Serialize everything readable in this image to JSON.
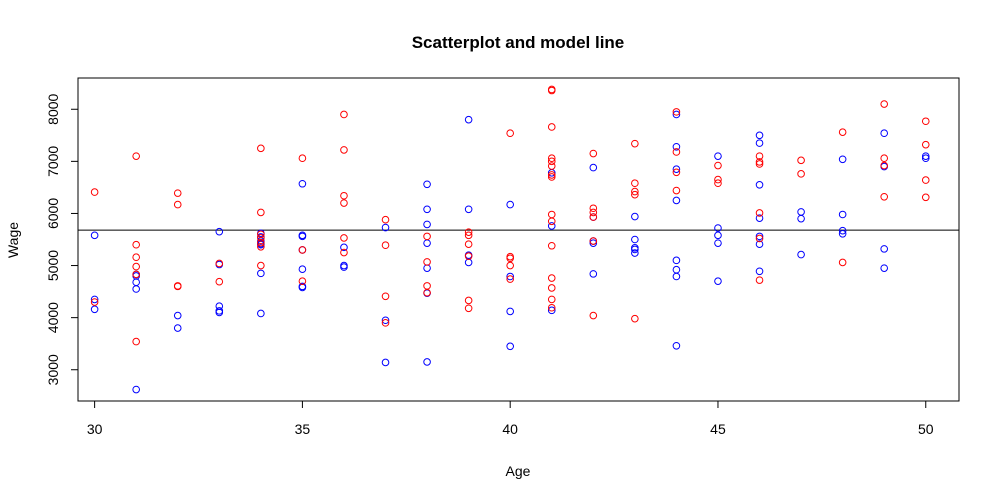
{
  "chart_data": {
    "type": "scatter",
    "title": "Scatterplot and model line",
    "xlabel": "Age",
    "ylabel": "Wage",
    "xlim": [
      29.6,
      50.8
    ],
    "ylim": [
      2400,
      8600
    ],
    "xticks": [
      30,
      35,
      40,
      45,
      50
    ],
    "yticks": [
      3000,
      4000,
      5000,
      6000,
      7000,
      8000
    ],
    "model_line": {
      "type": "hline",
      "y": 5680,
      "color": "#000000"
    },
    "series": [
      {
        "name": "blue",
        "color": "#0000FF",
        "points": [
          [
            30,
            5580
          ],
          [
            30,
            4350
          ],
          [
            30,
            4160
          ],
          [
            31,
            4830
          ],
          [
            31,
            4800
          ],
          [
            31,
            4680
          ],
          [
            31,
            4550
          ],
          [
            31,
            2620
          ],
          [
            32,
            4040
          ],
          [
            32,
            3800
          ],
          [
            33,
            5650
          ],
          [
            33,
            5020
          ],
          [
            33,
            4220
          ],
          [
            33,
            4130
          ],
          [
            33,
            4100
          ],
          [
            34,
            5620
          ],
          [
            34,
            5550
          ],
          [
            34,
            5470
          ],
          [
            34,
            5420
          ],
          [
            34,
            5400
          ],
          [
            34,
            4850
          ],
          [
            34,
            4080
          ],
          [
            35,
            6570
          ],
          [
            35,
            5580
          ],
          [
            35,
            5560
          ],
          [
            35,
            5300
          ],
          [
            35,
            4930
          ],
          [
            35,
            4600
          ],
          [
            35,
            4580
          ],
          [
            36,
            5350
          ],
          [
            36,
            5000
          ],
          [
            36,
            4970
          ],
          [
            37,
            5730
          ],
          [
            37,
            3950
          ],
          [
            37,
            3140
          ],
          [
            38,
            6560
          ],
          [
            38,
            6080
          ],
          [
            38,
            5790
          ],
          [
            38,
            5430
          ],
          [
            38,
            4950
          ],
          [
            38,
            4470
          ],
          [
            38,
            3150
          ],
          [
            39,
            7800
          ],
          [
            39,
            6080
          ],
          [
            39,
            5200
          ],
          [
            39,
            5060
          ],
          [
            40,
            6170
          ],
          [
            40,
            4790
          ],
          [
            40,
            4120
          ],
          [
            40,
            3450
          ],
          [
            41,
            6780
          ],
          [
            41,
            5760
          ],
          [
            41,
            4140
          ],
          [
            42,
            6880
          ],
          [
            42,
            5930
          ],
          [
            42,
            5470
          ],
          [
            42,
            5430
          ],
          [
            42,
            4840
          ],
          [
            43,
            5940
          ],
          [
            43,
            5500
          ],
          [
            43,
            5340
          ],
          [
            43,
            5310
          ],
          [
            43,
            5240
          ],
          [
            44,
            7900
          ],
          [
            44,
            7280
          ],
          [
            44,
            6850
          ],
          [
            44,
            6250
          ],
          [
            44,
            5100
          ],
          [
            44,
            4920
          ],
          [
            44,
            4790
          ],
          [
            44,
            3460
          ],
          [
            45,
            7100
          ],
          [
            45,
            5720
          ],
          [
            45,
            5580
          ],
          [
            45,
            5430
          ],
          [
            45,
            4700
          ],
          [
            46,
            7500
          ],
          [
            46,
            7350
          ],
          [
            46,
            6550
          ],
          [
            46,
            5910
          ],
          [
            46,
            5560
          ],
          [
            46,
            5410
          ],
          [
            46,
            4890
          ],
          [
            47,
            6030
          ],
          [
            47,
            5900
          ],
          [
            47,
            5210
          ],
          [
            48,
            7040
          ],
          [
            48,
            5980
          ],
          [
            48,
            5670
          ],
          [
            48,
            5610
          ],
          [
            49,
            7540
          ],
          [
            49,
            6900
          ],
          [
            49,
            5320
          ],
          [
            49,
            4950
          ],
          [
            50,
            7100
          ],
          [
            50,
            7060
          ]
        ]
      },
      {
        "name": "red",
        "color": "#FF0000",
        "points": [
          [
            30,
            6410
          ],
          [
            30,
            4300
          ],
          [
            31,
            7100
          ],
          [
            31,
            5400
          ],
          [
            31,
            5160
          ],
          [
            31,
            4980
          ],
          [
            31,
            4830
          ],
          [
            31,
            3540
          ],
          [
            32,
            6390
          ],
          [
            32,
            6170
          ],
          [
            32,
            4610
          ],
          [
            32,
            4600
          ],
          [
            33,
            5040
          ],
          [
            33,
            4690
          ],
          [
            34,
            7250
          ],
          [
            34,
            6020
          ],
          [
            34,
            5600
          ],
          [
            34,
            5530
          ],
          [
            34,
            5440
          ],
          [
            34,
            5360
          ],
          [
            34,
            5000
          ],
          [
            35,
            7060
          ],
          [
            35,
            5300
          ],
          [
            35,
            4700
          ],
          [
            36,
            7900
          ],
          [
            36,
            7220
          ],
          [
            36,
            6340
          ],
          [
            36,
            6200
          ],
          [
            36,
            5530
          ],
          [
            36,
            5250
          ],
          [
            37,
            5880
          ],
          [
            37,
            5390
          ],
          [
            37,
            4410
          ],
          [
            37,
            3900
          ],
          [
            38,
            5560
          ],
          [
            38,
            5070
          ],
          [
            38,
            4610
          ],
          [
            38,
            4480
          ],
          [
            39,
            5640
          ],
          [
            39,
            5580
          ],
          [
            39,
            5410
          ],
          [
            39,
            5180
          ],
          [
            39,
            4330
          ],
          [
            39,
            4180
          ],
          [
            40,
            7540
          ],
          [
            40,
            5170
          ],
          [
            40,
            5140
          ],
          [
            40,
            5000
          ],
          [
            40,
            4740
          ],
          [
            41,
            8380
          ],
          [
            41,
            8360
          ],
          [
            41,
            7660
          ],
          [
            41,
            7060
          ],
          [
            41,
            7000
          ],
          [
            41,
            6910
          ],
          [
            41,
            6740
          ],
          [
            41,
            6700
          ],
          [
            41,
            5980
          ],
          [
            41,
            5850
          ],
          [
            41,
            5380
          ],
          [
            41,
            4760
          ],
          [
            41,
            4570
          ],
          [
            41,
            4350
          ],
          [
            41,
            4190
          ],
          [
            42,
            7150
          ],
          [
            42,
            6100
          ],
          [
            42,
            6020
          ],
          [
            42,
            5930
          ],
          [
            42,
            5470
          ],
          [
            42,
            4040
          ],
          [
            43,
            7340
          ],
          [
            43,
            6580
          ],
          [
            43,
            6420
          ],
          [
            43,
            6360
          ],
          [
            43,
            3980
          ],
          [
            44,
            7950
          ],
          [
            44,
            7180
          ],
          [
            44,
            6790
          ],
          [
            44,
            6440
          ],
          [
            45,
            6920
          ],
          [
            45,
            6650
          ],
          [
            45,
            6580
          ],
          [
            46,
            7100
          ],
          [
            46,
            6990
          ],
          [
            46,
            6950
          ],
          [
            46,
            6010
          ],
          [
            46,
            5520
          ],
          [
            46,
            4720
          ],
          [
            47,
            7020
          ],
          [
            47,
            6760
          ],
          [
            48,
            7560
          ],
          [
            48,
            5060
          ],
          [
            49,
            8100
          ],
          [
            49,
            7060
          ],
          [
            49,
            6920
          ],
          [
            49,
            6320
          ],
          [
            50,
            7770
          ],
          [
            50,
            7320
          ],
          [
            50,
            6640
          ],
          [
            50,
            6310
          ]
        ]
      }
    ]
  }
}
